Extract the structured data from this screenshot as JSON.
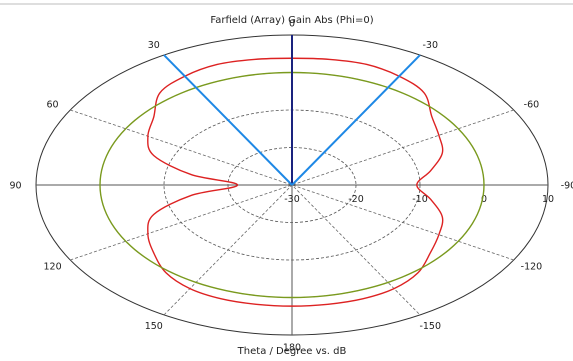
{
  "chart_data": {
    "type": "polar",
    "title": "Farfield (Array) Gain Abs (Phi=0)",
    "xlabel": "Theta / Degree vs. dB",
    "r_range_db": [
      -30,
      10
    ],
    "r_ticks": [
      -30,
      -20,
      -10,
      0,
      10
    ],
    "r_tick_labels": [
      "-30",
      "-20",
      "-10",
      "0",
      "10"
    ],
    "angle_tick_labels": [
      {
        "theta": 0,
        "label": "0"
      },
      {
        "theta": -30,
        "label": "-30"
      },
      {
        "theta": -60,
        "label": "-60"
      },
      {
        "theta": -90,
        "label": "-90"
      },
      {
        "theta": -120,
        "label": "-120"
      },
      {
        "theta": -150,
        "label": "-150"
      },
      {
        "theta": 180,
        "label": "180"
      },
      {
        "theta": 150,
        "label": "150"
      },
      {
        "theta": 120,
        "label": "120"
      },
      {
        "theta": 90,
        "label": "90"
      },
      {
        "theta": 60,
        "label": "60"
      },
      {
        "theta": 30,
        "label": "30"
      }
    ],
    "series": [
      {
        "color": "#dd2222",
        "theta": [
          0,
          10,
          20,
          30,
          40,
          50,
          60,
          70,
          80,
          90,
          100,
          110,
          120,
          130,
          140,
          150,
          160,
          170,
          180,
          190,
          200,
          210,
          220,
          230,
          240,
          250,
          260,
          270,
          280,
          290,
          300,
          310,
          320,
          330,
          340,
          350
        ],
        "gain_db": [
          3.8,
          4,
          4.2,
          3.5,
          2.1,
          -1.8,
          -4,
          -7,
          -14,
          -21.5,
          -14,
          -7,
          -4,
          -1.8,
          0.6,
          1.9,
          2.3,
          2.3,
          2.3,
          2.3,
          2.3,
          1.9,
          0.6,
          -1.8,
          -3.5,
          -5,
          -8,
          -10.5,
          -8,
          -5,
          -3.5,
          -1.5,
          2.1,
          3.5,
          4.2,
          4
        ]
      },
      {
        "color": "#7a9a1e",
        "theta": [
          0,
          90,
          180,
          270
        ],
        "gain_db": [
          0,
          0,
          0,
          0
        ]
      }
    ],
    "beam_lines": [
      {
        "theta": 0,
        "color": "#1a237e"
      },
      {
        "theta": 30,
        "color": "#1e88e5"
      },
      {
        "theta": -30,
        "color": "#1e88e5"
      }
    ],
    "grid": true
  }
}
